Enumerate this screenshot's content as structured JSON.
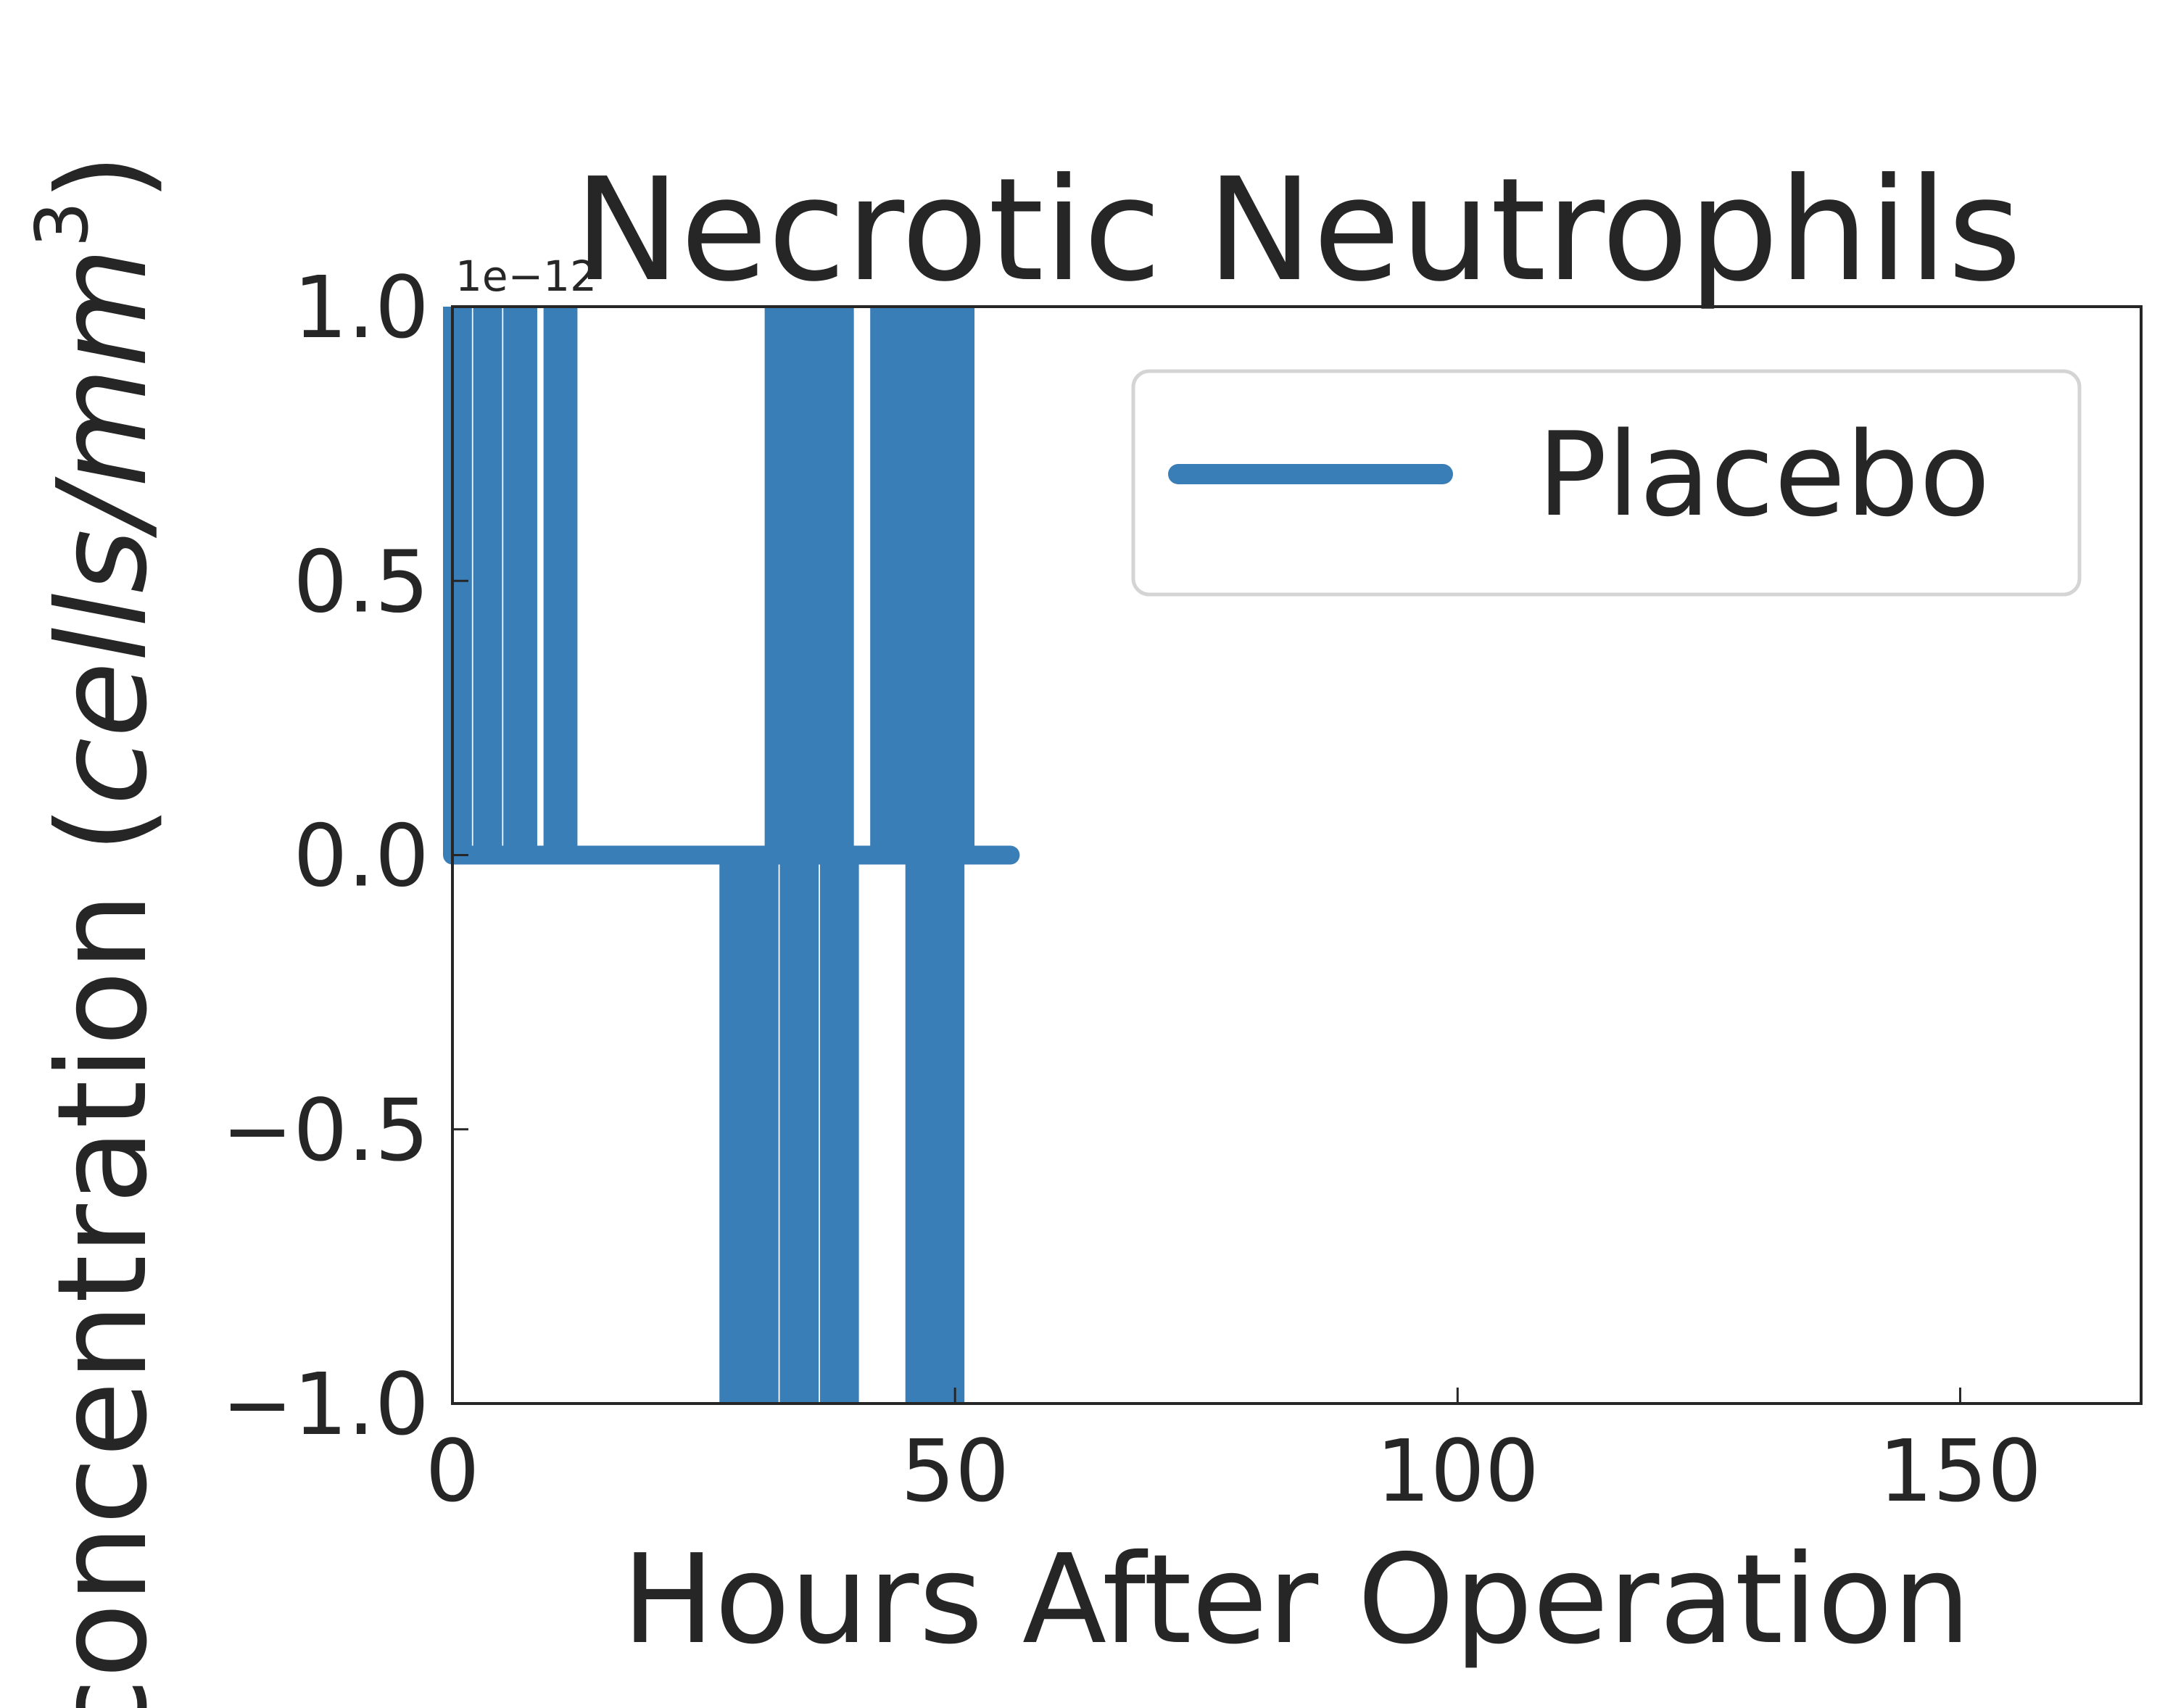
{
  "chart_data": {
    "type": "line",
    "title": "Necrotic Neutrophils",
    "xlabel": "Hours After Operation",
    "ylabel_prefix": "concentration (",
    "ylabel_units": "cells/mm",
    "ylabel_exponent": "3",
    "ylabel_suffix": ")",
    "y_offset_label": "1e−12",
    "xlim": [
      0,
      168
    ],
    "ylim": [
      -1.0,
      1.0
    ],
    "x_ticks": [
      0,
      50,
      100,
      150
    ],
    "x_tick_labels": [
      "0",
      "50",
      "100",
      "150"
    ],
    "y_ticks": [
      -1.0,
      -0.5,
      0.0,
      0.5,
      1.0
    ],
    "y_tick_labels": [
      "−1.0",
      "−0.5",
      "0.0",
      "0.5",
      "1.0"
    ],
    "grid": false,
    "legend_position": "top-right",
    "series": [
      {
        "name": "Placebo",
        "color": "#3a7eb8",
        "step_intervals": [
          {
            "x_start": 0.0,
            "x_end": 1.0,
            "value": 1.0
          },
          {
            "x_start": 3.0,
            "x_end": 4.0,
            "value": 1.0
          },
          {
            "x_start": 6.0,
            "x_end": 7.5,
            "value": 1.0
          },
          {
            "x_start": 10.0,
            "x_end": 11.5,
            "value": 1.0
          },
          {
            "x_start": 27.5,
            "x_end": 31.5,
            "value": -1.0
          },
          {
            "x_start": 32.0,
            "x_end": 39.0,
            "value": 1.0
          },
          {
            "x_start": 33.5,
            "x_end": 35.5,
            "value": -1.0
          },
          {
            "x_start": 37.5,
            "x_end": 39.5,
            "value": -1.0
          },
          {
            "x_start": 42.5,
            "x_end": 48.5,
            "value": 1.0
          },
          {
            "x_start": 46.0,
            "x_end": 50.0,
            "value": -1.0
          },
          {
            "x_start": 49.5,
            "x_end": 51.0,
            "value": 1.0
          }
        ],
        "baseline_x_end": 55.5,
        "baseline_value": 0.0
      }
    ]
  }
}
